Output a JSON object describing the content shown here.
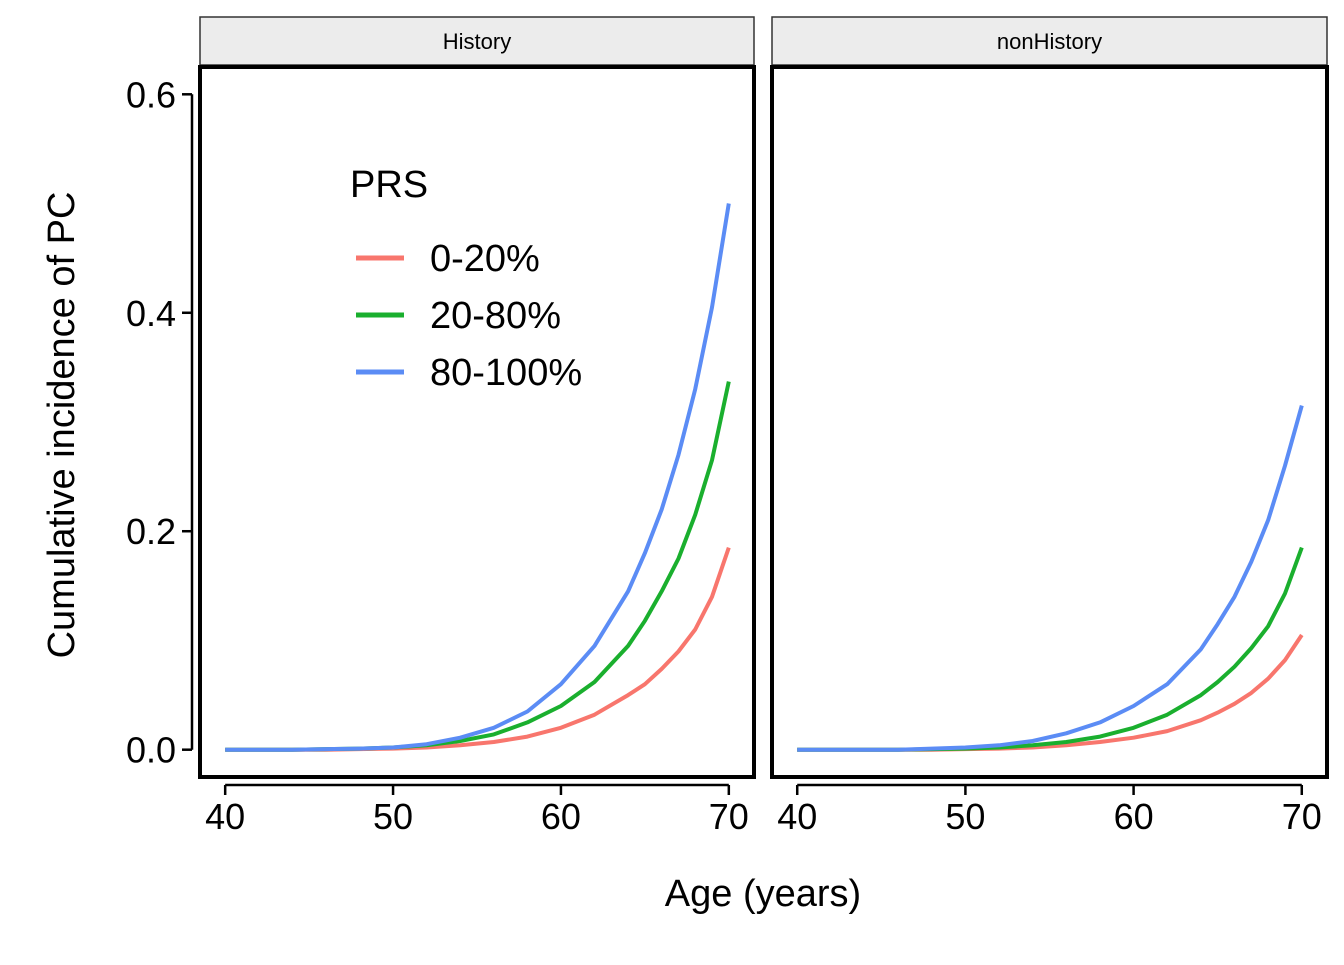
{
  "chart_data": {
    "type": "line",
    "xlabel": "Age (years)",
    "ylabel": "Cumulative incidence of PC",
    "xlim": [
      38.5,
      71.5
    ],
    "ylim": [
      -0.025,
      0.625
    ],
    "x_ticks": [
      40,
      50,
      60,
      70
    ],
    "x_tick_labels": [
      "40",
      "50",
      "60",
      "70"
    ],
    "y_ticks": [
      0.0,
      0.2,
      0.4,
      0.6
    ],
    "y_tick_labels": [
      "0.0",
      "0.2",
      "0.4",
      "0.6"
    ],
    "grid": false,
    "legend": {
      "title": "PRS",
      "placement": "inside top-left of first panel",
      "entries": [
        "0-20%",
        "20-80%",
        "80-100%"
      ]
    },
    "colors": {
      "0-20%": "#F8766D",
      "20-80%": "#1AAF2E",
      "80-100%": "#5B8CF5"
    },
    "panels": [
      {
        "name": "History",
        "series": [
          {
            "name": "0-20%",
            "x": [
              40,
              42,
              44,
              46,
              48,
              50,
              52,
              54,
              56,
              58,
              60,
              62,
              64,
              65,
              66,
              67,
              68,
              69,
              70
            ],
            "y": [
              0.0,
              0.0,
              0.0,
              0.0,
              0.0005,
              0.001,
              0.002,
              0.004,
              0.007,
              0.012,
              0.02,
              0.032,
              0.05,
              0.06,
              0.074,
              0.09,
              0.11,
              0.14,
              0.185
            ]
          },
          {
            "name": "20-80%",
            "x": [
              40,
              42,
              44,
              46,
              48,
              50,
              52,
              54,
              56,
              58,
              60,
              62,
              64,
              65,
              66,
              67,
              68,
              69,
              70
            ],
            "y": [
              0.0,
              0.0,
              0.0,
              0.0005,
              0.001,
              0.002,
              0.004,
              0.008,
              0.014,
              0.025,
              0.04,
              0.062,
              0.095,
              0.118,
              0.145,
              0.175,
              0.215,
              0.265,
              0.337
            ]
          },
          {
            "name": "80-100%",
            "x": [
              40,
              42,
              44,
              46,
              48,
              50,
              52,
              54,
              56,
              58,
              60,
              62,
              64,
              65,
              66,
              67,
              68,
              69,
              70
            ],
            "y": [
              0.0,
              0.0,
              0.0,
              0.0005,
              0.001,
              0.002,
              0.005,
              0.011,
              0.02,
              0.035,
              0.06,
              0.095,
              0.145,
              0.18,
              0.22,
              0.27,
              0.33,
              0.405,
              0.5
            ]
          }
        ]
      },
      {
        "name": "nonHistory",
        "series": [
          {
            "name": "0-20%",
            "x": [
              40,
              42,
              44,
              46,
              48,
              50,
              52,
              54,
              56,
              58,
              60,
              62,
              64,
              65,
              66,
              67,
              68,
              69,
              70
            ],
            "y": [
              0.0,
              0.0,
              0.0,
              0.0,
              0.0,
              0.0005,
              0.001,
              0.002,
              0.004,
              0.007,
              0.011,
              0.017,
              0.027,
              0.034,
              0.042,
              0.052,
              0.065,
              0.082,
              0.105
            ]
          },
          {
            "name": "20-80%",
            "x": [
              40,
              42,
              44,
              46,
              48,
              50,
              52,
              54,
              56,
              58,
              60,
              62,
              64,
              65,
              66,
              67,
              68,
              69,
              70
            ],
            "y": [
              0.0,
              0.0,
              0.0,
              0.0,
              0.0005,
              0.001,
              0.002,
              0.004,
              0.007,
              0.012,
              0.02,
              0.032,
              0.05,
              0.062,
              0.076,
              0.093,
              0.113,
              0.143,
              0.185
            ]
          },
          {
            "name": "80-100%",
            "x": [
              40,
              42,
              44,
              46,
              48,
              50,
              52,
              54,
              56,
              58,
              60,
              62,
              64,
              65,
              66,
              67,
              68,
              69,
              70
            ],
            "y": [
              0.0,
              0.0,
              0.0,
              0.0,
              0.001,
              0.002,
              0.004,
              0.008,
              0.015,
              0.025,
              0.04,
              0.06,
              0.092,
              0.115,
              0.14,
              0.172,
              0.21,
              0.26,
              0.315
            ]
          }
        ]
      }
    ]
  }
}
